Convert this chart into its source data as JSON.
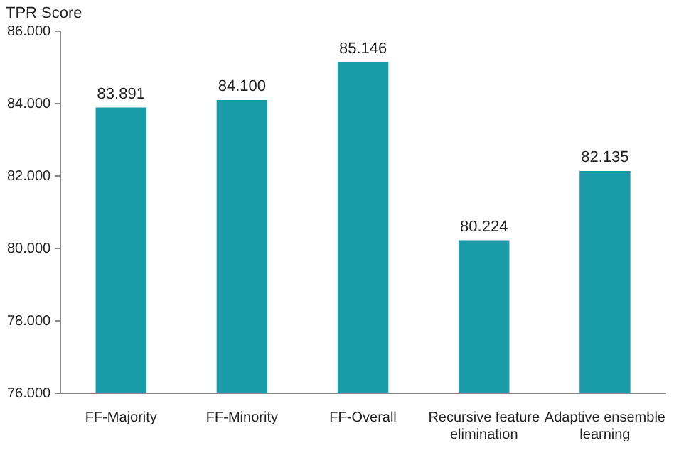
{
  "chart_data": {
    "type": "bar",
    "ylabel": "TPR Score",
    "categories": [
      "FF-Majority",
      "FF-Minority",
      "FF-Overall",
      "Recursive feature elimination",
      "Adaptive ensemble learning"
    ],
    "values": [
      83.891,
      84.1,
      85.146,
      80.224,
      82.135
    ],
    "value_labels": [
      "83.891",
      "84.100",
      "85.146",
      "80.224",
      "82.135"
    ],
    "color": "#1a9ba8",
    "ylim": [
      76,
      86
    ],
    "yticks": [
      {
        "value": 76,
        "label": "76.000"
      },
      {
        "value": 78,
        "label": "78.000"
      },
      {
        "value": 80,
        "label": "80.000"
      },
      {
        "value": 82,
        "label": "82.000"
      },
      {
        "value": 84,
        "label": "84.000"
      },
      {
        "value": 86,
        "label": "86.000"
      }
    ],
    "grid": false,
    "legend": false
  }
}
